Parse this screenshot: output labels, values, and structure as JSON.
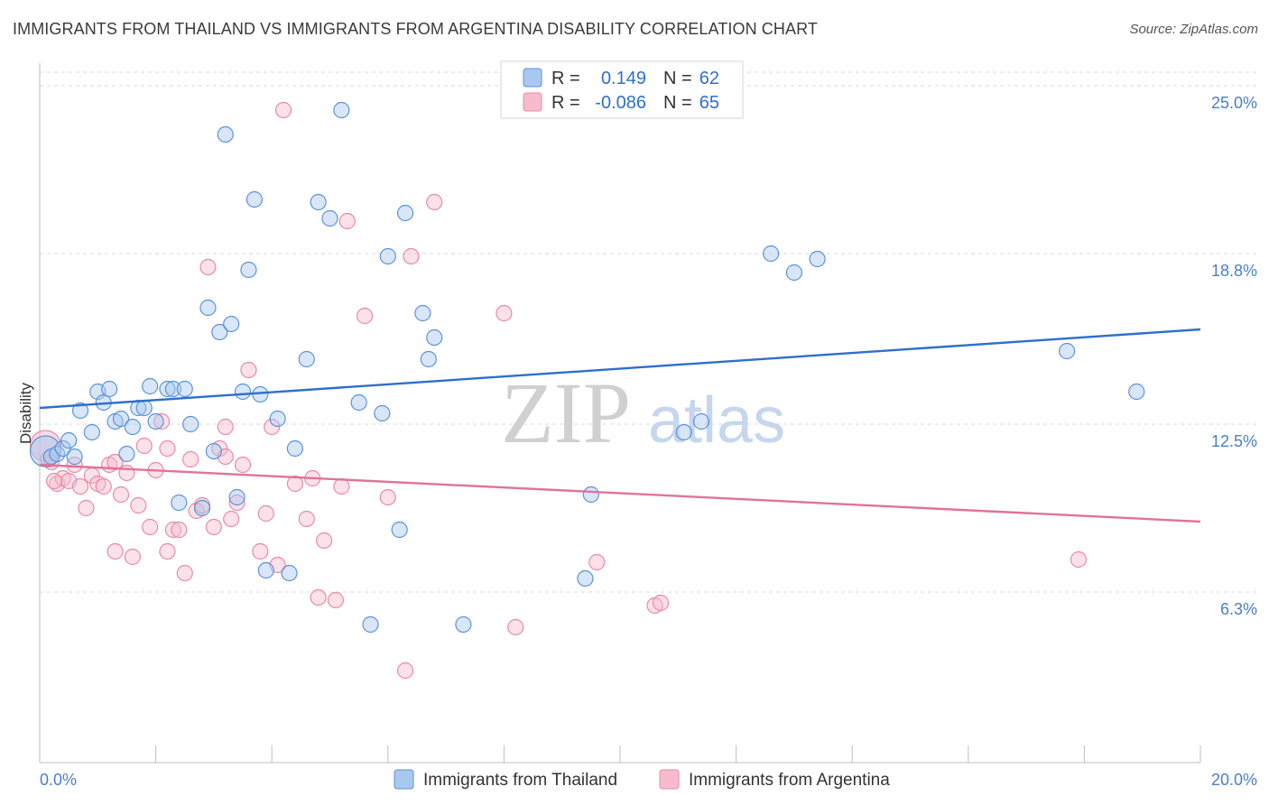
{
  "header": {
    "title": "IMMIGRANTS FROM THAILAND VS IMMIGRANTS FROM ARGENTINA DISABILITY CORRELATION CHART",
    "source": "Source: ZipAtlas.com"
  },
  "watermark": {
    "zip": "ZIP",
    "atlas": "atlas"
  },
  "colors": {
    "thailand_fill": "#a9c8f0",
    "thailand_stroke": "#5b93d8",
    "thailand_line": "#2e6fcc",
    "argentina_fill": "#f6bccd",
    "argentina_stroke": "#e88aa8",
    "argentina_line": "#e0739a",
    "accent_text": "#2e6fcc",
    "grid": "#d9d9d9"
  },
  "stats_legend": {
    "rows": [
      {
        "r_label": "R =",
        "r_value": "0.149",
        "n_label": "N =",
        "n_value": "62"
      },
      {
        "r_label": "R =",
        "r_value": "-0.086",
        "n_label": "N =",
        "n_value": "65"
      }
    ]
  },
  "chart_data": {
    "type": "scatter",
    "xlabel": "",
    "ylabel": "Disability",
    "xlim": [
      0,
      20
    ],
    "ylim": [
      0,
      26.3
    ],
    "x_tick_labels": [
      {
        "value": 0,
        "label": "0.0%"
      },
      {
        "value": 20,
        "label": "20.0%"
      }
    ],
    "y_tick_labels": [
      {
        "value": 6.3,
        "label": "6.3%"
      },
      {
        "value": 12.5,
        "label": "12.5%"
      },
      {
        "value": 18.8,
        "label": "18.8%"
      },
      {
        "value": 25.0,
        "label": "25.0%"
      }
    ],
    "grid": "horizontal dashed",
    "legend_placement": "bottom-center",
    "series": [
      {
        "name": "Immigrants from Thailand",
        "trend": {
          "x": [
            0,
            20
          ],
          "y": [
            13.1,
            16.0
          ]
        },
        "points": [
          {
            "x": 0.1,
            "y": 11.5,
            "big": true
          },
          {
            "x": 0.2,
            "y": 11.3
          },
          {
            "x": 0.3,
            "y": 11.4
          },
          {
            "x": 0.4,
            "y": 11.6
          },
          {
            "x": 0.5,
            "y": 11.9
          },
          {
            "x": 0.6,
            "y": 11.3
          },
          {
            "x": 0.7,
            "y": 13.0
          },
          {
            "x": 0.9,
            "y": 12.2
          },
          {
            "x": 1.0,
            "y": 13.7
          },
          {
            "x": 1.1,
            "y": 13.3
          },
          {
            "x": 1.2,
            "y": 13.8
          },
          {
            "x": 1.3,
            "y": 12.6
          },
          {
            "x": 1.4,
            "y": 12.7
          },
          {
            "x": 1.5,
            "y": 11.4
          },
          {
            "x": 1.6,
            "y": 12.4
          },
          {
            "x": 1.7,
            "y": 13.1
          },
          {
            "x": 1.8,
            "y": 13.1
          },
          {
            "x": 1.9,
            "y": 13.9
          },
          {
            "x": 2.0,
            "y": 12.6
          },
          {
            "x": 2.2,
            "y": 13.8
          },
          {
            "x": 2.3,
            "y": 13.8
          },
          {
            "x": 2.5,
            "y": 13.8
          },
          {
            "x": 2.4,
            "y": 9.6
          },
          {
            "x": 2.6,
            "y": 12.5
          },
          {
            "x": 2.8,
            "y": 9.4
          },
          {
            "x": 2.9,
            "y": 16.8
          },
          {
            "x": 3.0,
            "y": 11.5
          },
          {
            "x": 3.1,
            "y": 15.9
          },
          {
            "x": 3.2,
            "y": 23.2
          },
          {
            "x": 3.3,
            "y": 16.2
          },
          {
            "x": 3.4,
            "y": 9.8
          },
          {
            "x": 3.5,
            "y": 13.7
          },
          {
            "x": 3.6,
            "y": 18.2
          },
          {
            "x": 3.7,
            "y": 20.8
          },
          {
            "x": 3.8,
            "y": 13.6
          },
          {
            "x": 3.9,
            "y": 7.1
          },
          {
            "x": 4.1,
            "y": 12.7
          },
          {
            "x": 4.3,
            "y": 7.0
          },
          {
            "x": 4.4,
            "y": 11.6
          },
          {
            "x": 4.6,
            "y": 14.9
          },
          {
            "x": 4.8,
            "y": 20.7
          },
          {
            "x": 5.0,
            "y": 20.1
          },
          {
            "x": 5.2,
            "y": 24.1
          },
          {
            "x": 5.5,
            "y": 13.3
          },
          {
            "x": 5.7,
            "y": 5.1
          },
          {
            "x": 5.9,
            "y": 12.9
          },
          {
            "x": 6.0,
            "y": 18.7
          },
          {
            "x": 6.2,
            "y": 8.6
          },
          {
            "x": 6.3,
            "y": 20.3
          },
          {
            "x": 6.6,
            "y": 16.6
          },
          {
            "x": 6.7,
            "y": 14.9
          },
          {
            "x": 6.8,
            "y": 15.7
          },
          {
            "x": 7.3,
            "y": 5.1
          },
          {
            "x": 9.4,
            "y": 6.8
          },
          {
            "x": 9.5,
            "y": 9.9
          },
          {
            "x": 11.1,
            "y": 12.2
          },
          {
            "x": 11.4,
            "y": 12.6
          },
          {
            "x": 12.6,
            "y": 18.8
          },
          {
            "x": 13.0,
            "y": 18.1
          },
          {
            "x": 13.4,
            "y": 18.6
          },
          {
            "x": 17.7,
            "y": 15.2
          },
          {
            "x": 18.9,
            "y": 13.7
          }
        ]
      },
      {
        "name": "Immigrants from Argentina",
        "trend": {
          "x": [
            0,
            20
          ],
          "y": [
            11.0,
            8.9
          ]
        },
        "points": [
          {
            "x": 0.1,
            "y": 11.7,
            "big": true
          },
          {
            "x": 0.2,
            "y": 11.1
          },
          {
            "x": 0.3,
            "y": 10.3
          },
          {
            "x": 0.4,
            "y": 10.5
          },
          {
            "x": 0.5,
            "y": 10.4
          },
          {
            "x": 0.6,
            "y": 11.0
          },
          {
            "x": 0.7,
            "y": 10.2
          },
          {
            "x": 0.8,
            "y": 9.4
          },
          {
            "x": 0.9,
            "y": 10.6
          },
          {
            "x": 1.0,
            "y": 10.3
          },
          {
            "x": 1.1,
            "y": 10.2
          },
          {
            "x": 1.2,
            "y": 11.0
          },
          {
            "x": 1.3,
            "y": 11.1
          },
          {
            "x": 1.3,
            "y": 7.8
          },
          {
            "x": 1.4,
            "y": 9.9
          },
          {
            "x": 1.5,
            "y": 10.7
          },
          {
            "x": 1.6,
            "y": 7.6
          },
          {
            "x": 1.7,
            "y": 9.5
          },
          {
            "x": 1.8,
            "y": 11.7
          },
          {
            "x": 1.9,
            "y": 8.7
          },
          {
            "x": 2.0,
            "y": 10.8
          },
          {
            "x": 2.1,
            "y": 12.6
          },
          {
            "x": 2.2,
            "y": 11.6
          },
          {
            "x": 2.2,
            "y": 7.8
          },
          {
            "x": 2.3,
            "y": 8.6
          },
          {
            "x": 2.4,
            "y": 8.6
          },
          {
            "x": 2.5,
            "y": 7.0
          },
          {
            "x": 2.6,
            "y": 11.2
          },
          {
            "x": 2.7,
            "y": 9.3
          },
          {
            "x": 2.8,
            "y": 9.5
          },
          {
            "x": 2.9,
            "y": 18.3
          },
          {
            "x": 3.0,
            "y": 8.7
          },
          {
            "x": 3.1,
            "y": 11.6
          },
          {
            "x": 3.2,
            "y": 11.3
          },
          {
            "x": 3.2,
            "y": 12.4
          },
          {
            "x": 3.3,
            "y": 9.0
          },
          {
            "x": 3.4,
            "y": 9.6
          },
          {
            "x": 3.5,
            "y": 11.0
          },
          {
            "x": 3.6,
            "y": 14.5
          },
          {
            "x": 3.8,
            "y": 7.8
          },
          {
            "x": 3.9,
            "y": 9.2
          },
          {
            "x": 4.0,
            "y": 12.4
          },
          {
            "x": 4.1,
            "y": 7.3
          },
          {
            "x": 4.2,
            "y": 24.1
          },
          {
            "x": 4.4,
            "y": 10.3
          },
          {
            "x": 4.6,
            "y": 9.0
          },
          {
            "x": 4.7,
            "y": 10.5
          },
          {
            "x": 4.8,
            "y": 6.1
          },
          {
            "x": 4.9,
            "y": 8.2
          },
          {
            "x": 5.1,
            "y": 6.0
          },
          {
            "x": 5.2,
            "y": 10.2
          },
          {
            "x": 5.3,
            "y": 20.0
          },
          {
            "x": 5.6,
            "y": 16.5
          },
          {
            "x": 6.0,
            "y": 9.8
          },
          {
            "x": 6.3,
            "y": 3.4
          },
          {
            "x": 6.4,
            "y": 18.7
          },
          {
            "x": 6.8,
            "y": 20.7
          },
          {
            "x": 8.0,
            "y": 16.6
          },
          {
            "x": 8.2,
            "y": 5.0
          },
          {
            "x": 9.6,
            "y": 7.4
          },
          {
            "x": 10.6,
            "y": 5.8
          },
          {
            "x": 10.7,
            "y": 5.9
          },
          {
            "x": 17.9,
            "y": 7.5
          },
          {
            "x": 0.15,
            "y": 11.2
          },
          {
            "x": 0.25,
            "y": 10.4
          }
        ]
      }
    ]
  }
}
